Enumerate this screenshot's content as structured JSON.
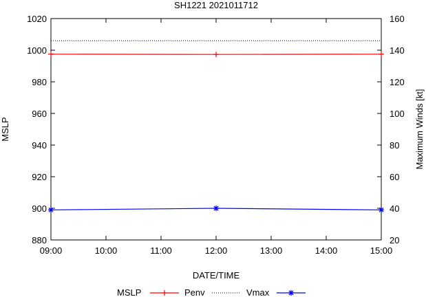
{
  "chart_data": {
    "type": "line",
    "title": "SH1221 2021011712",
    "xlabel": "DATE/TIME",
    "ylabel": "MSLP",
    "y2label": "Maximum Winds [kt]",
    "categories": [
      "09:00",
      "10:00",
      "11:00",
      "12:00",
      "13:00",
      "14:00",
      "15:00"
    ],
    "x_hours": [
      9,
      10,
      11,
      12,
      13,
      14,
      15
    ],
    "xlim": [
      9,
      15
    ],
    "ylim": [
      880,
      1020
    ],
    "y_ticks": [
      880,
      900,
      920,
      940,
      960,
      980,
      1000,
      1020
    ],
    "y2lim": [
      20,
      160
    ],
    "y2_ticks": [
      20,
      40,
      60,
      80,
      100,
      120,
      140,
      160
    ],
    "grid": false,
    "legend_position": "bottom",
    "series": [
      {
        "name": "MSLP",
        "role": "legend-heading",
        "color": "#000000"
      },
      {
        "name": "Penv",
        "axis": "y2",
        "color": "#ff0000",
        "marker": "plus",
        "x": [
          9,
          12,
          15
        ],
        "values": [
          137.5,
          137.3,
          137.5
        ]
      },
      {
        "name": "",
        "axis": "y2",
        "color": "#000000",
        "style": "dotted",
        "x": [
          9,
          15
        ],
        "values": [
          146,
          146
        ]
      },
      {
        "name": "Vmax",
        "axis": "y2",
        "color": "#0000ff",
        "marker": "star",
        "x": [
          9,
          12,
          15
        ],
        "values": [
          39,
          40,
          39
        ]
      }
    ]
  }
}
